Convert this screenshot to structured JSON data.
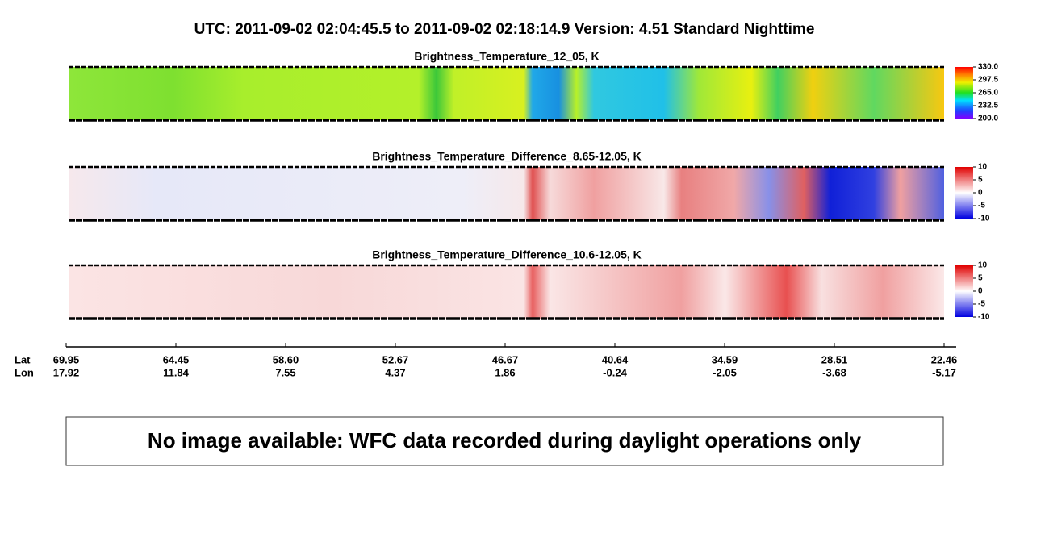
{
  "header": {
    "title": "UTC:  2011-09-02   02:04:45.5  to  2011-09-02   02:18:14.9    Version: 4.51  Standard Nighttime"
  },
  "panels": [
    {
      "title": "Brightness_Temperature_12_05, K",
      "clim": [
        200,
        330
      ],
      "ticks": [
        {
          "value": 330,
          "label": "330.0"
        },
        {
          "value": 297.5,
          "label": "297.5"
        },
        {
          "value": 265,
          "label": "265.0"
        },
        {
          "value": 232.5,
          "label": "232.5"
        },
        {
          "value": 200,
          "label": "200.0"
        }
      ]
    },
    {
      "title": "Brightness_Temperature_Difference_8.65-12.05, K",
      "clim": [
        -10,
        10
      ],
      "ticks": [
        10,
        5,
        0,
        -5,
        -10
      ]
    },
    {
      "title": "Brightness_Temperature_Difference_10.6-12.05, K",
      "clim": [
        -10,
        10
      ],
      "ticks": [
        10,
        5,
        0,
        -5,
        -10
      ]
    }
  ],
  "axis": {
    "lat_label": "Lat",
    "lon_label": "Lon",
    "lat": [
      "69.95",
      "64.45",
      "58.60",
      "52.67",
      "46.67",
      "40.64",
      "34.59",
      "28.51",
      "22.46"
    ],
    "lon": [
      "17.92",
      "11.84",
      "7.55",
      "4.37",
      "1.86",
      "-0.24",
      "-2.05",
      "-3.68",
      "-5.17"
    ]
  },
  "message": "No image available: WFC data recorded during daylight operations only"
}
